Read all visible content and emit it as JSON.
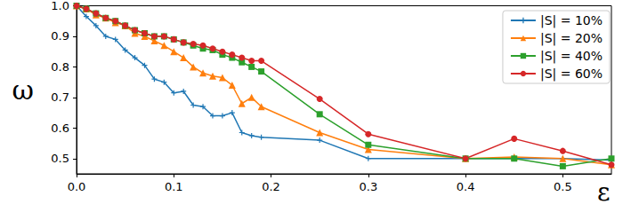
{
  "chart_data": {
    "type": "line",
    "x_label": "ε",
    "y_label": "ω",
    "x": [
      0,
      0.01,
      0.02,
      0.03,
      0.04,
      0.05,
      0.06,
      0.07,
      0.08,
      0.09,
      0.1,
      0.11,
      0.12,
      0.13,
      0.14,
      0.15,
      0.16,
      0.17,
      0.18,
      0.19,
      0.25,
      0.3,
      0.4,
      0.45,
      0.5,
      0.55
    ],
    "series": [
      {
        "name": "|S| = 10%",
        "color": "#1f77b4",
        "marker": "plus",
        "values": [
          1.0,
          0.965,
          0.935,
          0.9,
          0.89,
          0.855,
          0.83,
          0.805,
          0.76,
          0.75,
          0.715,
          0.72,
          0.675,
          0.67,
          0.64,
          0.64,
          0.65,
          0.585,
          0.575,
          0.57,
          0.56,
          0.5,
          0.5,
          0.5,
          0.5,
          0.495
        ]
      },
      {
        "name": "|S| = 20%",
        "color": "#ff7f0e",
        "marker": "triangle",
        "values": [
          1.0,
          0.99,
          0.97,
          0.96,
          0.945,
          0.935,
          0.91,
          0.9,
          0.885,
          0.87,
          0.85,
          0.83,
          0.8,
          0.78,
          0.77,
          0.765,
          0.74,
          0.68,
          0.7,
          0.67,
          0.585,
          0.53,
          0.5,
          0.505,
          0.5,
          0.48
        ]
      },
      {
        "name": "|S| = 40%",
        "color": "#2ca02c",
        "marker": "square",
        "values": [
          1.0,
          0.99,
          0.975,
          0.96,
          0.95,
          0.935,
          0.92,
          0.91,
          0.9,
          0.9,
          0.89,
          0.88,
          0.87,
          0.86,
          0.855,
          0.84,
          0.83,
          0.815,
          0.8,
          0.785,
          0.645,
          0.545,
          0.5,
          0.5,
          0.475,
          0.5
        ]
      },
      {
        "name": "|S| = 60%",
        "color": "#d62728",
        "marker": "circle",
        "values": [
          1.0,
          0.99,
          0.975,
          0.96,
          0.95,
          0.935,
          0.92,
          0.91,
          0.9,
          0.9,
          0.89,
          0.88,
          0.875,
          0.87,
          0.86,
          0.85,
          0.84,
          0.83,
          0.82,
          0.82,
          0.695,
          0.58,
          0.5,
          0.565,
          0.525,
          0.48
        ]
      }
    ],
    "xlim": [
      0,
      0.55
    ],
    "ylim": [
      0.45,
      1.0
    ],
    "xticks": [
      {
        "value": 0,
        "label": "0.0"
      },
      0.1,
      0.2,
      0.3,
      0.4,
      0.5
    ],
    "yticks": [
      0.5,
      0.6,
      0.7,
      0.8,
      0.9,
      {
        "value": 1.0,
        "label": "1.0"
      }
    ],
    "grid": false,
    "legend": "upper right"
  }
}
